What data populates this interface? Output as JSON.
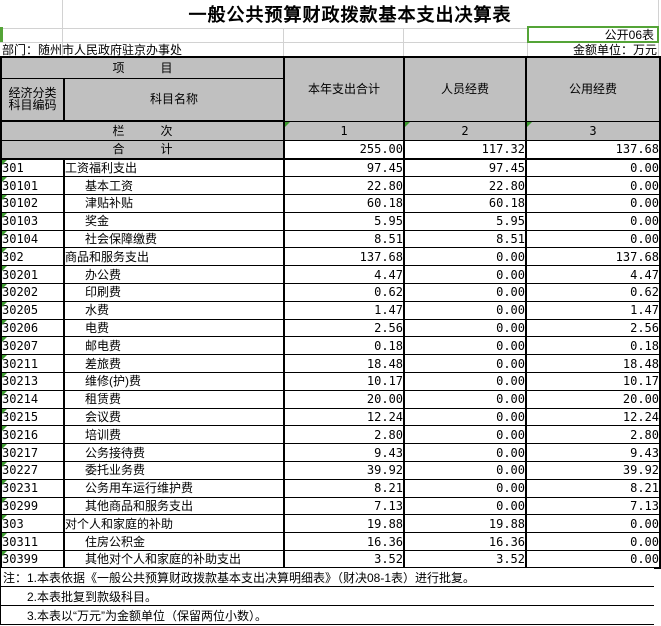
{
  "meta": {
    "title": "一般公共预算财政拨款基本支出决算表",
    "table_code": "公开06表",
    "department": "部门：随州市人民政府驻京办事处",
    "unit": "金额单位：万元"
  },
  "header": {
    "project_label": "项　　　目",
    "econ_code_lines": [
      "经济分类",
      "科目编码"
    ],
    "subject_label": "科目名称",
    "columns": [
      "本年支出合计",
      "人员经费",
      "公用经费"
    ],
    "lanci_label": "栏　　　次",
    "col_numbers": [
      "1",
      "2",
      "3"
    ]
  },
  "total_row": {
    "label": "合　　　计",
    "values": [
      "255.00",
      "117.32",
      "137.68"
    ]
  },
  "rows": [
    {
      "code": "301",
      "name": "工资福利支出",
      "indent": false,
      "values": [
        "97.45",
        "97.45",
        "0.00"
      ]
    },
    {
      "code": "30101",
      "name": "基本工资",
      "indent": true,
      "values": [
        "22.80",
        "22.80",
        "0.00"
      ]
    },
    {
      "code": "30102",
      "name": "津贴补贴",
      "indent": true,
      "values": [
        "60.18",
        "60.18",
        "0.00"
      ]
    },
    {
      "code": "30103",
      "name": "奖金",
      "indent": true,
      "values": [
        "5.95",
        "5.95",
        "0.00"
      ]
    },
    {
      "code": "30104",
      "name": "社会保障缴费",
      "indent": true,
      "values": [
        "8.51",
        "8.51",
        "0.00"
      ]
    },
    {
      "code": "302",
      "name": "商品和服务支出",
      "indent": false,
      "values": [
        "137.68",
        "0.00",
        "137.68"
      ]
    },
    {
      "code": "30201",
      "name": "办公费",
      "indent": true,
      "values": [
        "4.47",
        "0.00",
        "4.47"
      ]
    },
    {
      "code": "30202",
      "name": "印刷费",
      "indent": true,
      "values": [
        "0.62",
        "0.00",
        "0.62"
      ]
    },
    {
      "code": "30205",
      "name": "水费",
      "indent": true,
      "values": [
        "1.47",
        "0.00",
        "1.47"
      ]
    },
    {
      "code": "30206",
      "name": "电费",
      "indent": true,
      "values": [
        "2.56",
        "0.00",
        "2.56"
      ]
    },
    {
      "code": "30207",
      "name": "邮电费",
      "indent": true,
      "values": [
        "0.18",
        "0.00",
        "0.18"
      ]
    },
    {
      "code": "30211",
      "name": "差旅费",
      "indent": true,
      "values": [
        "18.48",
        "0.00",
        "18.48"
      ]
    },
    {
      "code": "30213",
      "name": "维修(护)费",
      "indent": true,
      "values": [
        "10.17",
        "0.00",
        "10.17"
      ]
    },
    {
      "code": "30214",
      "name": "租赁费",
      "indent": true,
      "values": [
        "20.00",
        "0.00",
        "20.00"
      ]
    },
    {
      "code": "30215",
      "name": "会议费",
      "indent": true,
      "values": [
        "12.24",
        "0.00",
        "12.24"
      ]
    },
    {
      "code": "30216",
      "name": "培训费",
      "indent": true,
      "values": [
        "2.80",
        "0.00",
        "2.80"
      ]
    },
    {
      "code": "30217",
      "name": "公务接待费",
      "indent": true,
      "values": [
        "9.43",
        "0.00",
        "9.43"
      ]
    },
    {
      "code": "30227",
      "name": "委托业务费",
      "indent": true,
      "values": [
        "39.92",
        "0.00",
        "39.92"
      ]
    },
    {
      "code": "30231",
      "name": "公务用车运行维护费",
      "indent": true,
      "values": [
        "8.21",
        "0.00",
        "8.21"
      ]
    },
    {
      "code": "30299",
      "name": "其他商品和服务支出",
      "indent": true,
      "values": [
        "7.13",
        "0.00",
        "7.13"
      ]
    },
    {
      "code": "303",
      "name": "对个人和家庭的补助",
      "indent": false,
      "values": [
        "19.88",
        "19.88",
        "0.00"
      ]
    },
    {
      "code": "30311",
      "name": "住房公积金",
      "indent": true,
      "values": [
        "16.36",
        "16.36",
        "0.00"
      ]
    },
    {
      "code": "30399",
      "name": "其他对个人和家庭的补助支出",
      "indent": true,
      "values": [
        "3.52",
        "3.52",
        "0.00"
      ]
    }
  ],
  "notes": [
    "注：1.本表依据《一般公共预算财政拨款基本支出决算明细表》（财决08-1表）进行批复。",
    "2.本表批复到款级科目。",
    "3.本表以“万元”为金额单位（保留两位小数）。"
  ],
  "colors": {
    "selection_green": "#54a437",
    "triangle_green": "#3c9a2e",
    "header_gray": "#c0c0c0"
  }
}
